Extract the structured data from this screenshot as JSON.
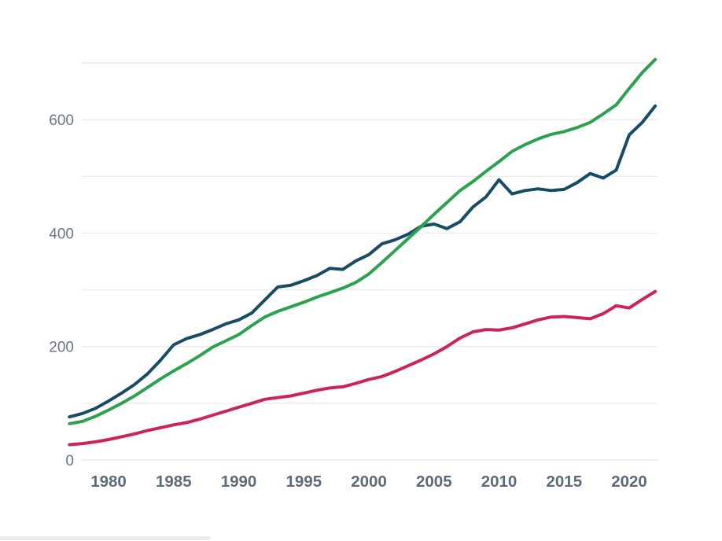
{
  "chart_data": {
    "type": "line",
    "title": "",
    "xlabel": "",
    "ylabel": "",
    "legend": "none",
    "grid": "horizontal-only",
    "xlim": [
      1977,
      2022
    ],
    "ylim": [
      0,
      730
    ],
    "x_ticks": [
      1980,
      1985,
      1990,
      1995,
      2000,
      2005,
      2010,
      2015,
      2020
    ],
    "y_tick_labels": [
      0,
      200,
      400,
      600
    ],
    "gridline_values": [
      0,
      100,
      200,
      300,
      400,
      500,
      600,
      700
    ],
    "x": [
      1977,
      1978,
      1979,
      1980,
      1981,
      1982,
      1983,
      1984,
      1985,
      1986,
      1987,
      1988,
      1989,
      1990,
      1991,
      1992,
      1993,
      1994,
      1995,
      1996,
      1997,
      1998,
      1999,
      2000,
      2001,
      2002,
      2003,
      2004,
      2005,
      2006,
      2007,
      2008,
      2009,
      2010,
      2011,
      2012,
      2013,
      2014,
      2015,
      2016,
      2017,
      2018,
      2019,
      2020,
      2021,
      2022
    ],
    "series": [
      {
        "key": "navy",
        "name": "Dark blue series",
        "color": "#174c66",
        "values": [
          76,
          82,
          91,
          104,
          118,
          133,
          152,
          176,
          203,
          214,
          221,
          230,
          240,
          247,
          259,
          282,
          305,
          308,
          316,
          325,
          338,
          336,
          351,
          362,
          381,
          388,
          398,
          412,
          416,
          408,
          420,
          446,
          464,
          494,
          469,
          475,
          478,
          475,
          477,
          489,
          505,
          497,
          511,
          573,
          595,
          624
        ]
      },
      {
        "key": "green",
        "name": "Green series",
        "color": "#2ba24d",
        "values": [
          64,
          68,
          77,
          88,
          100,
          113,
          128,
          143,
          157,
          170,
          184,
          199,
          210,
          221,
          237,
          252,
          262,
          270,
          278,
          287,
          295,
          303,
          313,
          328,
          348,
          369,
          390,
          411,
          433,
          454,
          475,
          491,
          509,
          526,
          544,
          556,
          566,
          574,
          579,
          586,
          595,
          610,
          626,
          655,
          683,
          706
        ]
      },
      {
        "key": "crimson",
        "name": "Crimson series",
        "color": "#cc245a",
        "values": [
          27,
          29,
          32,
          36,
          41,
          46,
          52,
          57,
          62,
          66,
          72,
          79,
          86,
          93,
          100,
          107,
          110,
          113,
          118,
          123,
          127,
          129,
          135,
          142,
          147,
          156,
          166,
          176,
          187,
          200,
          215,
          226,
          230,
          229,
          233,
          240,
          247,
          252,
          253,
          251,
          249,
          258,
          272,
          268,
          283,
          297
        ]
      }
    ]
  },
  "style": {
    "background": "#ffffff",
    "grid_color": "#ececef",
    "y_tick_color": "#6b7586",
    "x_tick_color": "#5b6b7d",
    "footer_bar_color": "#e8eaee",
    "line_width": 4
  }
}
